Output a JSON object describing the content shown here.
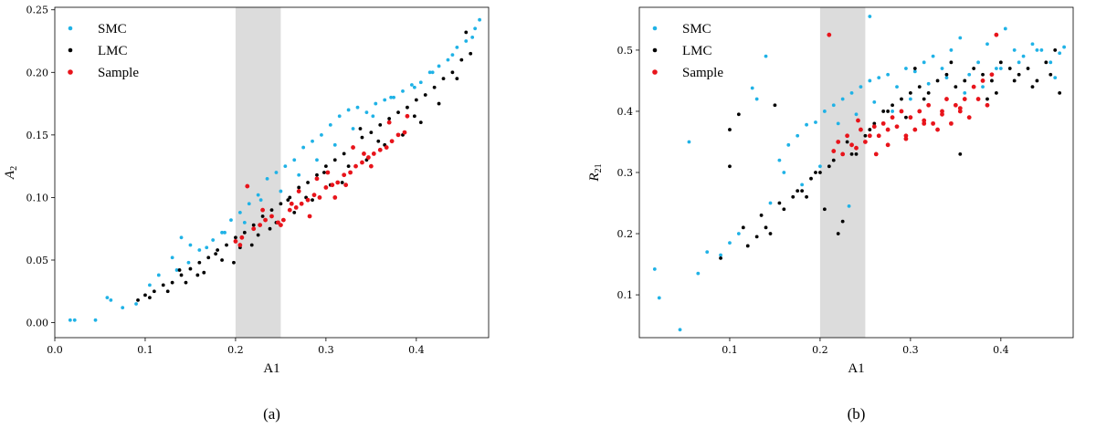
{
  "chart_data": [
    {
      "type": "scatter",
      "panel": "a",
      "caption": "(a)",
      "xlabel": "A1",
      "ylabel_main": "A",
      "ylabel_sub": "2",
      "xlim": [
        0.0,
        0.48
      ],
      "ylim": [
        -0.012,
        0.252
      ],
      "xticks": [
        0.0,
        0.1,
        0.2,
        0.3,
        0.4
      ],
      "xtick_labels": [
        "0.0",
        "0.1",
        "0.2",
        "0.3",
        "0.4"
      ],
      "yticks": [
        0.0,
        0.05,
        0.1,
        0.15,
        0.2,
        0.25
      ],
      "ytick_labels": [
        "0.00",
        "0.05",
        "0.10",
        "0.15",
        "0.20",
        "0.25"
      ],
      "shaded_band": [
        0.2,
        0.25
      ],
      "legend_position": "upper-left",
      "series": [
        {
          "name": "SMC",
          "color": "#1fb2e6",
          "x": [
            0.017,
            0.022,
            0.045,
            0.058,
            0.062,
            0.075,
            0.09,
            0.105,
            0.115,
            0.13,
            0.14,
            0.15,
            0.16,
            0.175,
            0.185,
            0.195,
            0.205,
            0.215,
            0.225,
            0.235,
            0.245,
            0.255,
            0.265,
            0.275,
            0.285,
            0.295,
            0.305,
            0.315,
            0.325,
            0.335,
            0.345,
            0.355,
            0.365,
            0.375,
            0.385,
            0.395,
            0.405,
            0.415,
            0.425,
            0.435,
            0.445,
            0.455,
            0.465,
            0.47,
            0.462,
            0.44,
            0.418,
            0.398,
            0.372,
            0.352,
            0.33,
            0.31,
            0.29,
            0.27,
            0.25,
            0.228,
            0.21,
            0.188,
            0.168,
            0.148,
            0.135
          ],
          "y": [
            0.002,
            0.002,
            0.002,
            0.02,
            0.018,
            0.012,
            0.015,
            0.03,
            0.038,
            0.052,
            0.068,
            0.062,
            0.058,
            0.066,
            0.072,
            0.082,
            0.088,
            0.095,
            0.102,
            0.115,
            0.12,
            0.125,
            0.13,
            0.14,
            0.145,
            0.15,
            0.158,
            0.165,
            0.17,
            0.172,
            0.168,
            0.175,
            0.178,
            0.18,
            0.185,
            0.19,
            0.192,
            0.2,
            0.205,
            0.21,
            0.22,
            0.225,
            0.235,
            0.242,
            0.228,
            0.214,
            0.2,
            0.188,
            0.18,
            0.165,
            0.155,
            0.142,
            0.13,
            0.118,
            0.105,
            0.098,
            0.08,
            0.072,
            0.06,
            0.048,
            0.042
          ]
        },
        {
          "name": "LMC",
          "color": "#000000",
          "x": [
            0.092,
            0.1,
            0.11,
            0.12,
            0.13,
            0.14,
            0.15,
            0.16,
            0.17,
            0.18,
            0.19,
            0.2,
            0.21,
            0.22,
            0.23,
            0.24,
            0.25,
            0.26,
            0.27,
            0.28,
            0.29,
            0.3,
            0.31,
            0.32,
            0.33,
            0.34,
            0.35,
            0.36,
            0.37,
            0.38,
            0.39,
            0.4,
            0.41,
            0.42,
            0.43,
            0.44,
            0.45,
            0.46,
            0.455,
            0.445,
            0.425,
            0.405,
            0.385,
            0.365,
            0.345,
            0.325,
            0.305,
            0.285,
            0.265,
            0.245,
            0.225,
            0.205,
            0.185,
            0.165,
            0.145,
            0.125,
            0.105,
            0.158,
            0.198,
            0.238,
            0.278,
            0.318,
            0.358,
            0.398,
            0.338,
            0.298,
            0.258,
            0.218,
            0.178,
            0.138
          ],
          "y": [
            0.018,
            0.022,
            0.025,
            0.03,
            0.032,
            0.038,
            0.043,
            0.048,
            0.052,
            0.058,
            0.062,
            0.068,
            0.072,
            0.078,
            0.085,
            0.09,
            0.095,
            0.1,
            0.108,
            0.112,
            0.118,
            0.125,
            0.13,
            0.135,
            0.14,
            0.148,
            0.152,
            0.158,
            0.163,
            0.168,
            0.172,
            0.178,
            0.182,
            0.188,
            0.195,
            0.2,
            0.21,
            0.215,
            0.232,
            0.195,
            0.175,
            0.16,
            0.15,
            0.142,
            0.13,
            0.125,
            0.11,
            0.098,
            0.088,
            0.08,
            0.07,
            0.06,
            0.05,
            0.04,
            0.032,
            0.025,
            0.02,
            0.038,
            0.048,
            0.075,
            0.1,
            0.112,
            0.145,
            0.165,
            0.155,
            0.12,
            0.098,
            0.062,
            0.055,
            0.042
          ]
        },
        {
          "name": "Sample",
          "color": "#e8141b",
          "x": [
            0.2,
            0.207,
            0.213,
            0.22,
            0.227,
            0.233,
            0.24,
            0.247,
            0.253,
            0.26,
            0.267,
            0.273,
            0.28,
            0.287,
            0.293,
            0.3,
            0.307,
            0.313,
            0.32,
            0.327,
            0.333,
            0.34,
            0.347,
            0.353,
            0.36,
            0.367,
            0.373,
            0.38,
            0.387,
            0.205,
            0.23,
            0.25,
            0.27,
            0.29,
            0.31,
            0.33,
            0.35,
            0.37,
            0.39,
            0.262,
            0.282,
            0.302,
            0.322,
            0.342
          ],
          "y": [
            0.065,
            0.068,
            0.109,
            0.075,
            0.078,
            0.082,
            0.085,
            0.08,
            0.082,
            0.09,
            0.092,
            0.095,
            0.098,
            0.102,
            0.1,
            0.108,
            0.11,
            0.112,
            0.118,
            0.12,
            0.125,
            0.128,
            0.132,
            0.135,
            0.138,
            0.14,
            0.145,
            0.15,
            0.152,
            0.062,
            0.09,
            0.078,
            0.105,
            0.115,
            0.1,
            0.14,
            0.125,
            0.16,
            0.165,
            0.095,
            0.085,
            0.12,
            0.11,
            0.135
          ]
        }
      ]
    },
    {
      "type": "scatter",
      "panel": "b",
      "caption": "(b)",
      "xlabel": "A1",
      "ylabel_main": "R",
      "ylabel_sub": "21",
      "xlim": [
        0.0,
        0.48
      ],
      "ylim": [
        0.03,
        0.57
      ],
      "xticks": [
        0.1,
        0.2,
        0.3,
        0.4
      ],
      "xtick_labels": [
        "0.1",
        "0.2",
        "0.3",
        "0.4"
      ],
      "yticks": [
        0.1,
        0.2,
        0.3,
        0.4,
        0.5
      ],
      "ytick_labels": [
        "0.1",
        "0.2",
        "0.3",
        "0.4",
        "0.5"
      ],
      "shaded_band": [
        0.2,
        0.25
      ],
      "legend_position": "upper-left",
      "series": [
        {
          "name": "SMC",
          "color": "#1fb2e6",
          "x": [
            0.017,
            0.022,
            0.045,
            0.055,
            0.065,
            0.075,
            0.09,
            0.1,
            0.11,
            0.125,
            0.13,
            0.14,
            0.145,
            0.155,
            0.165,
            0.175,
            0.185,
            0.195,
            0.205,
            0.215,
            0.225,
            0.235,
            0.245,
            0.255,
            0.265,
            0.275,
            0.285,
            0.295,
            0.305,
            0.315,
            0.325,
            0.335,
            0.345,
            0.355,
            0.365,
            0.375,
            0.385,
            0.395,
            0.405,
            0.415,
            0.425,
            0.435,
            0.445,
            0.455,
            0.465,
            0.47,
            0.46,
            0.44,
            0.42,
            0.4,
            0.38,
            0.36,
            0.34,
            0.32,
            0.3,
            0.28,
            0.26,
            0.24,
            0.22,
            0.2,
            0.18,
            0.16,
            0.232,
            0.255
          ],
          "y": [
            0.142,
            0.095,
            0.043,
            0.35,
            0.135,
            0.17,
            0.165,
            0.185,
            0.2,
            0.438,
            0.42,
            0.49,
            0.25,
            0.32,
            0.345,
            0.36,
            0.378,
            0.382,
            0.4,
            0.41,
            0.42,
            0.43,
            0.44,
            0.45,
            0.455,
            0.46,
            0.44,
            0.47,
            0.465,
            0.48,
            0.49,
            0.47,
            0.5,
            0.52,
            0.46,
            0.48,
            0.51,
            0.47,
            0.535,
            0.5,
            0.49,
            0.51,
            0.5,
            0.48,
            0.495,
            0.505,
            0.455,
            0.5,
            0.48,
            0.47,
            0.44,
            0.43,
            0.455,
            0.445,
            0.42,
            0.4,
            0.415,
            0.395,
            0.38,
            0.31,
            0.28,
            0.3,
            0.245,
            0.555
          ]
        },
        {
          "name": "LMC",
          "color": "#000000",
          "x": [
            0.09,
            0.1,
            0.11,
            0.12,
            0.13,
            0.14,
            0.15,
            0.16,
            0.17,
            0.18,
            0.19,
            0.2,
            0.21,
            0.22,
            0.23,
            0.24,
            0.25,
            0.26,
            0.27,
            0.28,
            0.29,
            0.3,
            0.31,
            0.32,
            0.33,
            0.34,
            0.35,
            0.36,
            0.37,
            0.38,
            0.39,
            0.4,
            0.41,
            0.42,
            0.43,
            0.44,
            0.45,
            0.46,
            0.465,
            0.455,
            0.435,
            0.415,
            0.395,
            0.375,
            0.355,
            0.335,
            0.315,
            0.295,
            0.275,
            0.255,
            0.235,
            0.215,
            0.195,
            0.175,
            0.155,
            0.135,
            0.115,
            0.1,
            0.145,
            0.225,
            0.205,
            0.185,
            0.305,
            0.345,
            0.385
          ],
          "y": [
            0.16,
            0.37,
            0.395,
            0.18,
            0.195,
            0.21,
            0.41,
            0.24,
            0.26,
            0.27,
            0.29,
            0.3,
            0.31,
            0.2,
            0.35,
            0.33,
            0.36,
            0.38,
            0.4,
            0.41,
            0.42,
            0.43,
            0.44,
            0.43,
            0.45,
            0.46,
            0.44,
            0.45,
            0.47,
            0.46,
            0.45,
            0.48,
            0.47,
            0.46,
            0.47,
            0.45,
            0.48,
            0.5,
            0.43,
            0.46,
            0.44,
            0.45,
            0.43,
            0.42,
            0.33,
            0.4,
            0.42,
            0.39,
            0.4,
            0.37,
            0.33,
            0.32,
            0.3,
            0.27,
            0.25,
            0.23,
            0.21,
            0.31,
            0.2,
            0.22,
            0.24,
            0.26,
            0.47,
            0.48,
            0.42
          ]
        },
        {
          "name": "Sample",
          "color": "#e8141b",
          "x": [
            0.21,
            0.215,
            0.22,
            0.225,
            0.23,
            0.235,
            0.24,
            0.245,
            0.25,
            0.255,
            0.26,
            0.265,
            0.27,
            0.275,
            0.28,
            0.285,
            0.29,
            0.295,
            0.3,
            0.305,
            0.31,
            0.315,
            0.32,
            0.325,
            0.33,
            0.335,
            0.34,
            0.345,
            0.35,
            0.355,
            0.36,
            0.365,
            0.37,
            0.375,
            0.38,
            0.385,
            0.39,
            0.395,
            0.275,
            0.295,
            0.315,
            0.335,
            0.355,
            0.242,
            0.262
          ],
          "y": [
            0.525,
            0.335,
            0.35,
            0.33,
            0.36,
            0.345,
            0.34,
            0.37,
            0.35,
            0.36,
            0.375,
            0.36,
            0.38,
            0.37,
            0.39,
            0.375,
            0.4,
            0.36,
            0.39,
            0.37,
            0.4,
            0.385,
            0.41,
            0.38,
            0.37,
            0.4,
            0.42,
            0.38,
            0.41,
            0.4,
            0.42,
            0.39,
            0.44,
            0.42,
            0.45,
            0.41,
            0.46,
            0.525,
            0.345,
            0.355,
            0.38,
            0.395,
            0.405,
            0.385,
            0.33
          ]
        }
      ]
    }
  ]
}
